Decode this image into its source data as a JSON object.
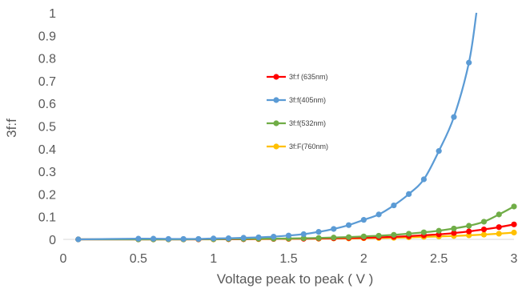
{
  "chart_data": {
    "type": "line",
    "title": "",
    "xlabel": "Voltage peak to peak ( V )",
    "ylabel": "3f:f",
    "xlim": [
      0,
      3
    ],
    "ylim": [
      0,
      1
    ],
    "x_ticks": [
      "0",
      "0.5",
      "1",
      "1.5",
      "2",
      "2.5",
      "3"
    ],
    "y_ticks": [
      "0",
      "0.1",
      "0.2",
      "0.3",
      "0.4",
      "0.5",
      "0.6",
      "0.7",
      "0.8",
      "0.9",
      "1"
    ],
    "grid": false,
    "legend_position": "center",
    "series": [
      {
        "name": "3f:f (635nm)",
        "color": "#FF0000",
        "x": [
          0.1,
          0.5,
          0.6,
          0.7,
          0.8,
          0.9,
          1.0,
          1.1,
          1.2,
          1.3,
          1.4,
          1.5,
          1.6,
          1.7,
          1.8,
          1.9,
          2.0,
          2.1,
          2.2,
          2.3,
          2.4,
          2.5,
          2.6,
          2.7,
          2.8,
          2.9,
          3.0
        ],
        "y": [
          0.0,
          0.0,
          0.0,
          0.0,
          0.0,
          0.0,
          0.001,
          0.001,
          0.001,
          0.002,
          0.002,
          0.003,
          0.003,
          0.004,
          0.005,
          0.006,
          0.007,
          0.009,
          0.011,
          0.014,
          0.018,
          0.022,
          0.028,
          0.035,
          0.044,
          0.054,
          0.066
        ]
      },
      {
        "name": "3f:f(405nm)",
        "color": "#5B9BD5",
        "x": [
          0.1,
          0.5,
          0.6,
          0.7,
          0.8,
          0.9,
          1.0,
          1.1,
          1.2,
          1.3,
          1.4,
          1.5,
          1.6,
          1.7,
          1.8,
          1.9,
          2.0,
          2.1,
          2.2,
          2.3,
          2.4,
          2.5,
          2.6,
          2.7,
          2.75
        ],
        "y": [
          0.0,
          0.003,
          0.003,
          0.002,
          0.002,
          0.002,
          0.004,
          0.005,
          0.007,
          0.009,
          0.012,
          0.017,
          0.023,
          0.033,
          0.046,
          0.063,
          0.086,
          0.11,
          0.15,
          0.2,
          0.265,
          0.39,
          0.54,
          0.78,
          1.0
        ]
      },
      {
        "name": "3f:f(532nm)",
        "color": "#70AD47",
        "x": [
          0.1,
          0.5,
          0.6,
          0.7,
          0.8,
          0.9,
          1.0,
          1.1,
          1.2,
          1.3,
          1.4,
          1.5,
          1.6,
          1.7,
          1.8,
          1.9,
          2.0,
          2.1,
          2.2,
          2.3,
          2.4,
          2.5,
          2.6,
          2.7,
          2.8,
          2.9,
          3.0
        ],
        "y": [
          0.0,
          0.0,
          0.0,
          0.0,
          0.0,
          0.001,
          0.001,
          0.002,
          0.002,
          0.003,
          0.003,
          0.004,
          0.005,
          0.006,
          0.008,
          0.01,
          0.013,
          0.016,
          0.02,
          0.025,
          0.031,
          0.038,
          0.048,
          0.06,
          0.078,
          0.11,
          0.145
        ]
      },
      {
        "name": "3f:F(760nm)",
        "color": "#FFC000",
        "x": [
          0.1,
          0.5,
          0.6,
          0.7,
          0.8,
          0.9,
          1.0,
          1.1,
          1.2,
          1.3,
          1.4,
          1.5,
          1.6,
          1.7,
          1.8,
          1.9,
          2.0,
          2.1,
          2.2,
          2.3,
          2.4,
          2.5,
          2.6,
          2.7,
          2.8,
          2.9,
          3.0
        ],
        "y": [
          0.0,
          0.0,
          0.0,
          0.0,
          0.0,
          0.0,
          0.0,
          0.001,
          0.001,
          0.001,
          0.002,
          0.002,
          0.003,
          0.003,
          0.004,
          0.004,
          0.005,
          0.006,
          0.007,
          0.009,
          0.011,
          0.013,
          0.015,
          0.018,
          0.021,
          0.025,
          0.03
        ]
      }
    ]
  }
}
